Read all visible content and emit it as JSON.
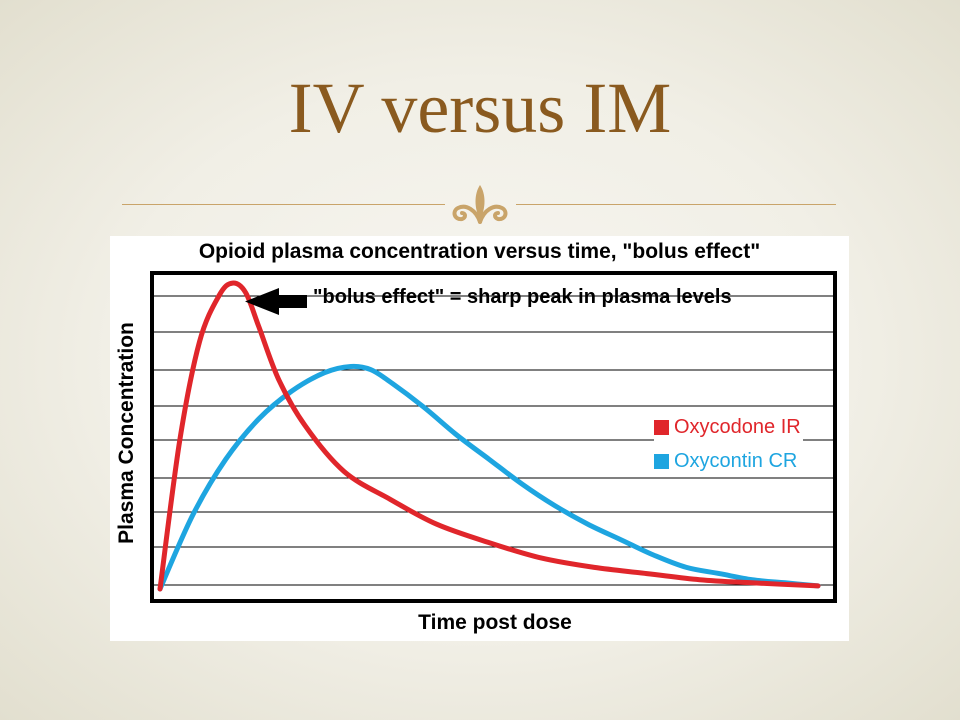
{
  "slide": {
    "title": "IV versus IM",
    "ornament": "fleur-ornament-icon"
  },
  "chart_data": {
    "type": "line",
    "title": "Opioid plasma concentration versus time, \"bolus effect\"",
    "xlabel": "Time post dose",
    "ylabel": "Plasma Concentration",
    "xlim": [
      0,
      100
    ],
    "ylim": [
      0,
      100
    ],
    "grid": true,
    "legend_position": "right",
    "annotation": {
      "text": "\"bolus effect\" = sharp peak in plasma levels",
      "target_series": "Oxycodone IR",
      "icon": "left-arrow-icon"
    },
    "series": [
      {
        "name": "Oxycodone IR",
        "color": "#e0262b",
        "x": [
          0,
          3,
          6,
          9,
          11,
          13,
          15,
          18,
          22,
          28,
          35,
          42,
          50,
          58,
          66,
          74,
          82,
          90,
          100
        ],
        "y": [
          0,
          48,
          80,
          95,
          99,
          96,
          85,
          68,
          53,
          38,
          29,
          21,
          15,
          10,
          7,
          5,
          3,
          2,
          1
        ]
      },
      {
        "name": "Oxycontin CR",
        "color": "#1ea5e0",
        "x": [
          0,
          5,
          10,
          15,
          20,
          25,
          29,
          32,
          35,
          40,
          45,
          50,
          55,
          60,
          65,
          70,
          75,
          80,
          85,
          90,
          95,
          100
        ],
        "y": [
          0,
          24,
          42,
          55,
          64,
          70,
          72,
          71,
          67,
          59,
          50,
          42,
          34,
          27,
          21,
          16,
          11,
          7,
          5,
          3,
          2,
          1
        ]
      }
    ]
  }
}
